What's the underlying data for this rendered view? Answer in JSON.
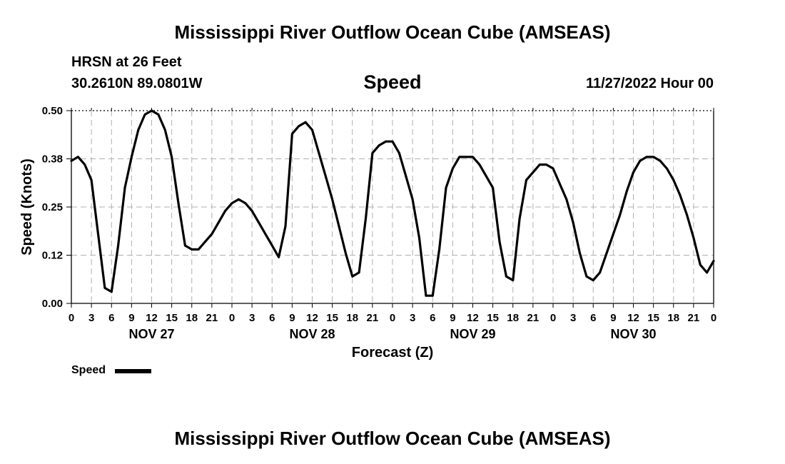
{
  "title_top": "Mississippi River Outflow Ocean Cube (AMSEAS)",
  "title_bottom": "Mississippi River Outflow Ocean Cube (AMSEAS)",
  "station": "HRSN at 26 Feet",
  "coords": "30.2610N  89.0801W",
  "parameter": "Speed",
  "datetime": "11/27/2022 Hour 00",
  "legend_label": "Speed",
  "chart_data": {
    "type": "line",
    "ylabel": "Speed (Knots)",
    "xlabel": "Forecast (Z)",
    "ylim": [
      0,
      0.5
    ],
    "xlim": [
      0,
      96
    ],
    "y_ticks": [
      "0.00",
      "0.12",
      "0.25",
      "0.38",
      "0.50"
    ],
    "x_tick_labels": [
      "0",
      "3",
      "6",
      "9",
      "12",
      "15",
      "18",
      "21",
      "0",
      "3",
      "6",
      "9",
      "12",
      "15",
      "18",
      "21",
      "0",
      "3",
      "6",
      "9",
      "12",
      "15",
      "18",
      "21",
      "0",
      "3",
      "6",
      "9",
      "12",
      "15",
      "18",
      "21",
      "0"
    ],
    "day_labels": [
      "NOV 27",
      "NOV 28",
      "NOV 29",
      "NOV 30"
    ],
    "grid": true,
    "series": [
      {
        "name": "Speed",
        "color": "#000000",
        "x": [
          0,
          1,
          2,
          3,
          4,
          5,
          6,
          7,
          8,
          9,
          10,
          11,
          12,
          13,
          14,
          15,
          16,
          17,
          18,
          19,
          20,
          21,
          22,
          23,
          24,
          25,
          26,
          27,
          28,
          29,
          30,
          31,
          32,
          33,
          34,
          35,
          36,
          37,
          38,
          39,
          40,
          41,
          42,
          43,
          44,
          45,
          46,
          47,
          48,
          49,
          50,
          51,
          52,
          53,
          54,
          55,
          56,
          57,
          58,
          59,
          60,
          61,
          62,
          63,
          64,
          65,
          66,
          67,
          68,
          69,
          70,
          71,
          72,
          73,
          74,
          75,
          76,
          77,
          78,
          79,
          80,
          81,
          82,
          83,
          84,
          85,
          86,
          87,
          88,
          89,
          90,
          91,
          92,
          93,
          94,
          95,
          96
        ],
        "values": [
          0.37,
          0.38,
          0.36,
          0.32,
          0.18,
          0.04,
          0.03,
          0.15,
          0.3,
          0.38,
          0.45,
          0.49,
          0.5,
          0.49,
          0.45,
          0.38,
          0.26,
          0.15,
          0.14,
          0.14,
          0.16,
          0.18,
          0.21,
          0.24,
          0.26,
          0.27,
          0.26,
          0.24,
          0.21,
          0.18,
          0.15,
          0.12,
          0.2,
          0.44,
          0.46,
          0.47,
          0.45,
          0.39,
          0.33,
          0.27,
          0.2,
          0.13,
          0.07,
          0.08,
          0.22,
          0.39,
          0.41,
          0.42,
          0.42,
          0.39,
          0.33,
          0.27,
          0.17,
          0.02,
          0.02,
          0.14,
          0.3,
          0.35,
          0.38,
          0.38,
          0.38,
          0.36,
          0.33,
          0.3,
          0.16,
          0.07,
          0.06,
          0.22,
          0.32,
          0.34,
          0.36,
          0.36,
          0.35,
          0.31,
          0.27,
          0.21,
          0.13,
          0.07,
          0.06,
          0.08,
          0.13,
          0.18,
          0.23,
          0.29,
          0.34,
          0.37,
          0.38,
          0.38,
          0.37,
          0.35,
          0.32,
          0.28,
          0.23,
          0.17,
          0.1,
          0.08,
          0.11
        ]
      }
    ]
  }
}
